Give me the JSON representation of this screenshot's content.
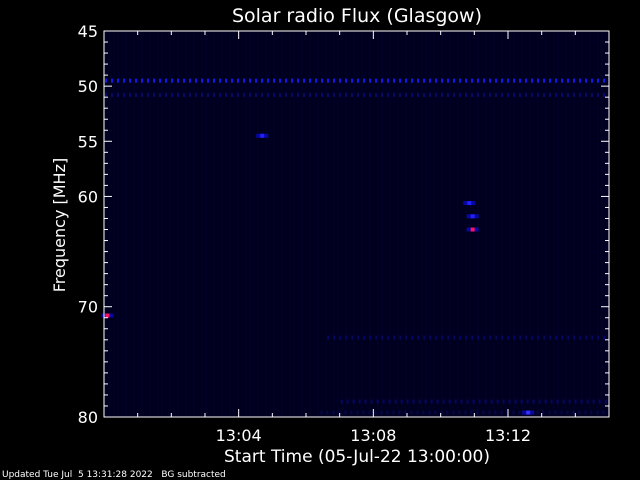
{
  "chart_data": {
    "type": "heatmap",
    "title": "Solar radio Flux (Glasgow)",
    "xlabel": "Start Time (05-Jul-22 13:00:00)",
    "ylabel": "Frequency [MHz]",
    "x_range_minutes": [
      0,
      15
    ],
    "y_range_mhz": [
      45,
      80
    ],
    "x_ticks": [
      {
        "minute": 4,
        "label": "13:04"
      },
      {
        "minute": 8,
        "label": "13:08"
      },
      {
        "minute": 12,
        "label": "13:12"
      }
    ],
    "y_ticks": [
      {
        "mhz": 45,
        "label": "45"
      },
      {
        "mhz": 50,
        "label": "50"
      },
      {
        "mhz": 55,
        "label": "55"
      },
      {
        "mhz": 60,
        "label": "60"
      },
      {
        "mhz": 70,
        "label": "70"
      },
      {
        "mhz": 80,
        "label": "80"
      }
    ],
    "background_color": "#00001e",
    "interference_lines": [
      {
        "mhz": 49.5,
        "color": "#1a1aff",
        "intensity": 0.9
      },
      {
        "mhz": 50.8,
        "color": "#1010b0",
        "intensity": 0.5
      },
      {
        "mhz": 72.8,
        "color": "#1010c8",
        "intensity": 0.4,
        "start_minute": 6.6
      },
      {
        "mhz": 78.6,
        "color": "#1010c8",
        "intensity": 0.4,
        "start_minute": 7.0
      },
      {
        "mhz": 79.6,
        "color": "#1010b0",
        "intensity": 0.3,
        "start_minute": 6.4
      }
    ],
    "hot_spots": [
      {
        "minute": 10.85,
        "mhz": 60.6,
        "color": "#2020ff"
      },
      {
        "minute": 10.95,
        "mhz": 61.8,
        "color": "#2020ff"
      },
      {
        "minute": 10.95,
        "mhz": 63.0,
        "color": "#ff1060"
      },
      {
        "minute": 0.1,
        "mhz": 70.8,
        "color": "#ff1060"
      },
      {
        "minute": 4.7,
        "mhz": 54.5,
        "color": "#2020ff"
      },
      {
        "minute": 12.6,
        "mhz": 79.6,
        "color": "#3030ff"
      }
    ]
  },
  "footer": {
    "text": "Updated Tue Jul  5 13:31:28 2022   BG subtracted"
  }
}
